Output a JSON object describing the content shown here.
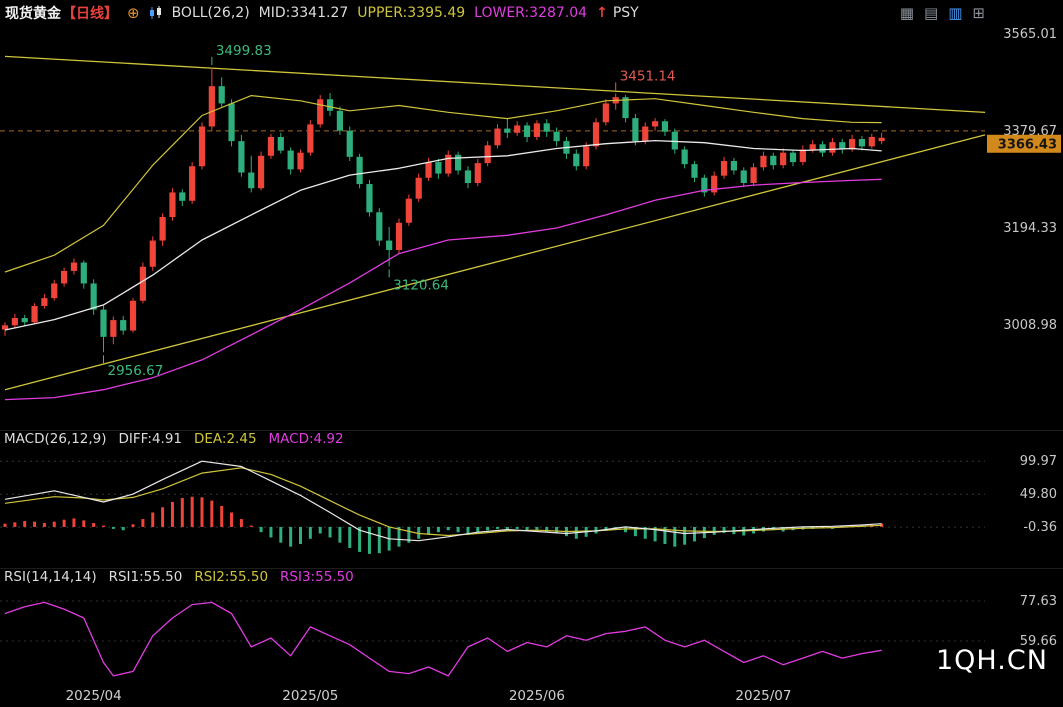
{
  "header": {
    "symbol": "现货黄金",
    "period": "【日线】",
    "plus": "⊕",
    "boll": {
      "label": "BOLL(26,2)",
      "mid": "MID:3341.27",
      "upper": "UPPER:3395.49",
      "lower": "LOWER:3287.04"
    },
    "arrow": "↑",
    "psy": "PSY",
    "icons": [
      "▦",
      "▤",
      "▥",
      "⊞"
    ]
  },
  "macd_header": {
    "name": "MACD(26,12,9)",
    "diff": "DIFF:4.91",
    "dea": "DEA:2.45",
    "macd": "MACD:4.92"
  },
  "rsi_header": {
    "name": "RSI(14,14,14)",
    "rsi1": "RSI1:55.50",
    "rsi2": "RSI2:55.50",
    "rsi3": "RSI3:55.50"
  },
  "watermark": "1QH.CN",
  "colors": {
    "up": "#ef4439",
    "down": "#2fae7d",
    "yellow": "#cfc53c",
    "magenta": "#e03ce0",
    "white": "#eaeaea",
    "dashed": "#a5691e",
    "price_box_bg": "#d2891c",
    "axis_text": "#c8c8c8"
  },
  "axis": {
    "x_labels": [
      {
        "label": "2025/04",
        "index": 9
      },
      {
        "label": "2025/05",
        "index": 31
      },
      {
        "label": "2025/06",
        "index": 54
      },
      {
        "label": "2025/07",
        "index": 77
      }
    ]
  },
  "chart_data": [
    {
      "type": "candlestick",
      "title": "现货黄金 日线 (Spot Gold Daily)",
      "ylim": [
        2808,
        3580
      ],
      "y_ticks": [
        "3565.01",
        "3379.67",
        "3194.33",
        "3008.98"
      ],
      "dashed_line": 3379.67,
      "last_price": 3366.43,
      "last_price_label": "3366.43",
      "candles": [
        [
          3000,
          3014,
          2988,
          3008
        ],
        [
          3008,
          3030,
          3002,
          3022
        ],
        [
          3022,
          3028,
          3006,
          3014
        ],
        [
          3014,
          3050,
          3010,
          3045
        ],
        [
          3045,
          3068,
          3040,
          3060
        ],
        [
          3060,
          3095,
          3055,
          3088
        ],
        [
          3088,
          3118,
          3082,
          3112
        ],
        [
          3112,
          3136,
          3105,
          3128
        ],
        [
          3128,
          3132,
          3078,
          3088
        ],
        [
          3088,
          3096,
          3028,
          3038
        ],
        [
          3038,
          3046,
          2956.67,
          2986
        ],
        [
          2986,
          3025,
          2972,
          3018
        ],
        [
          3018,
          3026,
          2990,
          2998
        ],
        [
          2998,
          3060,
          2994,
          3055
        ],
        [
          3055,
          3128,
          3050,
          3120
        ],
        [
          3120,
          3178,
          3112,
          3170
        ],
        [
          3170,
          3222,
          3160,
          3215
        ],
        [
          3215,
          3270,
          3208,
          3262
        ],
        [
          3262,
          3268,
          3236,
          3246
        ],
        [
          3246,
          3320,
          3240,
          3312
        ],
        [
          3312,
          3396,
          3306,
          3388
        ],
        [
          3388,
          3499.83,
          3380,
          3465
        ],
        [
          3465,
          3482,
          3424,
          3432
        ],
        [
          3432,
          3440,
          3350,
          3360
        ],
        [
          3360,
          3372,
          3292,
          3300
        ],
        [
          3300,
          3332,
          3262,
          3270
        ],
        [
          3270,
          3340,
          3266,
          3332
        ],
        [
          3332,
          3374,
          3326,
          3368
        ],
        [
          3368,
          3376,
          3336,
          3342
        ],
        [
          3342,
          3348,
          3296,
          3306
        ],
        [
          3306,
          3344,
          3300,
          3338
        ],
        [
          3338,
          3400,
          3332,
          3392
        ],
        [
          3392,
          3448,
          3386,
          3440
        ],
        [
          3440,
          3452,
          3408,
          3418
        ],
        [
          3418,
          3426,
          3372,
          3380
        ],
        [
          3380,
          3388,
          3322,
          3330
        ],
        [
          3330,
          3336,
          3270,
          3278
        ],
        [
          3278,
          3286,
          3216,
          3224
        ],
        [
          3224,
          3232,
          3160,
          3170
        ],
        [
          3170,
          3196,
          3120.64,
          3152
        ],
        [
          3152,
          3212,
          3146,
          3204
        ],
        [
          3204,
          3258,
          3198,
          3250
        ],
        [
          3250,
          3298,
          3244,
          3290
        ],
        [
          3290,
          3328,
          3284,
          3320
        ],
        [
          3320,
          3326,
          3288,
          3298
        ],
        [
          3298,
          3342,
          3292,
          3334
        ],
        [
          3334,
          3340,
          3296,
          3304
        ],
        [
          3304,
          3312,
          3270,
          3280
        ],
        [
          3280,
          3326,
          3274,
          3318
        ],
        [
          3318,
          3360,
          3312,
          3352
        ],
        [
          3352,
          3392,
          3346,
          3384
        ],
        [
          3384,
          3404,
          3366,
          3376
        ],
        [
          3376,
          3398,
          3370,
          3390
        ],
        [
          3390,
          3396,
          3358,
          3368
        ],
        [
          3368,
          3400,
          3362,
          3394
        ],
        [
          3394,
          3402,
          3368,
          3378
        ],
        [
          3378,
          3386,
          3350,
          3360
        ],
        [
          3360,
          3368,
          3326,
          3336
        ],
        [
          3336,
          3344,
          3304,
          3312
        ],
        [
          3312,
          3358,
          3306,
          3350
        ],
        [
          3350,
          3404,
          3344,
          3396
        ],
        [
          3396,
          3440,
          3390,
          3432
        ],
        [
          3432,
          3451.14,
          3420,
          3444
        ],
        [
          3444,
          3448,
          3396,
          3404
        ],
        [
          3404,
          3412,
          3352,
          3360
        ],
        [
          3360,
          3396,
          3354,
          3388
        ],
        [
          3388,
          3404,
          3380,
          3398
        ],
        [
          3398,
          3402,
          3370,
          3378
        ],
        [
          3378,
          3384,
          3336,
          3344
        ],
        [
          3344,
          3350,
          3308,
          3316
        ],
        [
          3316,
          3322,
          3282,
          3290
        ],
        [
          3290,
          3296,
          3254,
          3262
        ],
        [
          3262,
          3302,
          3256,
          3294
        ],
        [
          3294,
          3330,
          3288,
          3322
        ],
        [
          3322,
          3328,
          3296,
          3304
        ],
        [
          3304,
          3310,
          3272,
          3280
        ],
        [
          3280,
          3318,
          3274,
          3310
        ],
        [
          3310,
          3340,
          3304,
          3332
        ],
        [
          3332,
          3338,
          3306,
          3314
        ],
        [
          3314,
          3346,
          3308,
          3338
        ],
        [
          3338,
          3344,
          3312,
          3320
        ],
        [
          3320,
          3352,
          3314,
          3344
        ],
        [
          3344,
          3362,
          3338,
          3354
        ],
        [
          3354,
          3360,
          3330,
          3338
        ],
        [
          3338,
          3366,
          3332,
          3358
        ],
        [
          3358,
          3364,
          3336,
          3344
        ],
        [
          3344,
          3372,
          3340,
          3364
        ],
        [
          3364,
          3370,
          3342,
          3350
        ],
        [
          3350,
          3374,
          3346,
          3368
        ],
        [
          3360,
          3376,
          3354,
          3366.43
        ]
      ],
      "boll_mid": [
        [
          0,
          2999
        ],
        [
          5,
          3019
        ],
        [
          10,
          3047
        ],
        [
          15,
          3104
        ],
        [
          20,
          3171
        ],
        [
          25,
          3219
        ],
        [
          30,
          3266
        ],
        [
          35,
          3295
        ],
        [
          40,
          3308
        ],
        [
          45,
          3327
        ],
        [
          51,
          3332
        ],
        [
          56,
          3346
        ],
        [
          61,
          3355
        ],
        [
          66,
          3361
        ],
        [
          71,
          3357
        ],
        [
          76,
          3346
        ],
        [
          81,
          3342
        ],
        [
          86,
          3346
        ],
        [
          89,
          3341.27
        ]
      ],
      "boll_upper": [
        [
          0,
          3110
        ],
        [
          5,
          3142
        ],
        [
          10,
          3199
        ],
        [
          15,
          3314
        ],
        [
          20,
          3409
        ],
        [
          25,
          3447
        ],
        [
          30,
          3437
        ],
        [
          35,
          3418
        ],
        [
          40,
          3428
        ],
        [
          45,
          3415
        ],
        [
          51,
          3403
        ],
        [
          56,
          3418
        ],
        [
          61,
          3437
        ],
        [
          66,
          3441
        ],
        [
          71,
          3428
        ],
        [
          76,
          3415
        ],
        [
          81,
          3403
        ],
        [
          86,
          3396
        ],
        [
          89,
          3395.49
        ]
      ],
      "boll_lower": [
        [
          0,
          2866
        ],
        [
          5,
          2870
        ],
        [
          10,
          2885
        ],
        [
          15,
          2908
        ],
        [
          20,
          2942
        ],
        [
          25,
          2990
        ],
        [
          30,
          3038
        ],
        [
          35,
          3089
        ],
        [
          40,
          3145
        ],
        [
          45,
          3171
        ],
        [
          51,
          3180
        ],
        [
          56,
          3194
        ],
        [
          61,
          3219
        ],
        [
          66,
          3247
        ],
        [
          71,
          3266
        ],
        [
          76,
          3276
        ],
        [
          81,
          3281
        ],
        [
          86,
          3285
        ],
        [
          89,
          3287.04
        ]
      ],
      "trendlines": [
        {
          "x1": 0,
          "p1": 3522,
          "x2": 99.5,
          "p2": 3415
        },
        {
          "x1": 0,
          "p1": 2885,
          "x2": 99.5,
          "p2": 3372
        }
      ],
      "annotations": [
        {
          "text": "3499.83",
          "index": 21,
          "price": 3499.83,
          "pos": "above",
          "color": "#3db97e"
        },
        {
          "text": "3451.14",
          "index": 62,
          "price": 3451.14,
          "pos": "above",
          "color": "#e05a52"
        },
        {
          "text": "3120.64",
          "index": 39,
          "price": 3120.64,
          "pos": "below",
          "color": "#3db97e"
        },
        {
          "text": "2956.67",
          "index": 10,
          "price": 2956.67,
          "pos": "below",
          "color": "#3db97e"
        }
      ]
    },
    {
      "type": "bar",
      "name": "MACD",
      "ylim": [
        -64,
        146
      ],
      "y_ticks": [
        "99.97",
        "49.80",
        "-0.36"
      ],
      "hist": [
        5,
        7,
        9,
        8,
        6,
        8,
        11,
        13,
        10,
        6,
        2,
        -3,
        -5,
        4,
        12,
        22,
        30,
        38,
        44,
        46,
        45,
        40,
        32,
        22,
        12,
        2,
        -8,
        -16,
        -24,
        -30,
        -26,
        -18,
        -10,
        -16,
        -24,
        -32,
        -38,
        -41,
        -40,
        -36,
        -30,
        -24,
        -18,
        -12,
        -8,
        -5,
        -8,
        -12,
        -8,
        -5,
        -3,
        -5,
        -3,
        -6,
        -4,
        -7,
        -10,
        -14,
        -18,
        -15,
        -10,
        -6,
        -4,
        -8,
        -14,
        -18,
        -22,
        -26,
        -30,
        -27,
        -22,
        -17,
        -12,
        -9,
        -11,
        -13,
        -10,
        -7,
        -5,
        -7,
        -5,
        -4,
        -3,
        -2,
        -3,
        2,
        3,
        2,
        3,
        4.92
      ],
      "diff": [
        [
          0,
          42
        ],
        [
          5,
          55
        ],
        [
          8,
          45
        ],
        [
          10,
          38
        ],
        [
          13,
          50
        ],
        [
          16,
          72
        ],
        [
          20,
          100
        ],
        [
          24,
          92
        ],
        [
          27,
          70
        ],
        [
          30,
          48
        ],
        [
          33,
          22
        ],
        [
          36,
          -5
        ],
        [
          39,
          -18
        ],
        [
          42,
          -21
        ],
        [
          45,
          -15
        ],
        [
          48,
          -8
        ],
        [
          51,
          -4
        ],
        [
          54,
          -7
        ],
        [
          57,
          -10
        ],
        [
          60,
          -6
        ],
        [
          63,
          0
        ],
        [
          66,
          -4
        ],
        [
          69,
          -10
        ],
        [
          72,
          -8
        ],
        [
          75,
          -5
        ],
        [
          78,
          -2
        ],
        [
          81,
          0
        ],
        [
          84,
          1
        ],
        [
          87,
          3
        ],
        [
          89,
          4.91
        ]
      ],
      "dea": [
        [
          0,
          36
        ],
        [
          5,
          46
        ],
        [
          8,
          44
        ],
        [
          10,
          41
        ],
        [
          13,
          45
        ],
        [
          16,
          58
        ],
        [
          20,
          82
        ],
        [
          24,
          90
        ],
        [
          27,
          80
        ],
        [
          30,
          62
        ],
        [
          33,
          40
        ],
        [
          36,
          18
        ],
        [
          39,
          0
        ],
        [
          42,
          -10
        ],
        [
          45,
          -13
        ],
        [
          48,
          -10
        ],
        [
          51,
          -6
        ],
        [
          54,
          -5
        ],
        [
          57,
          -7
        ],
        [
          60,
          -6
        ],
        [
          63,
          -3
        ],
        [
          66,
          -3
        ],
        [
          69,
          -6
        ],
        [
          72,
          -7
        ],
        [
          75,
          -6
        ],
        [
          78,
          -4
        ],
        [
          81,
          -2
        ],
        [
          84,
          -1
        ],
        [
          87,
          1
        ],
        [
          89,
          2.45
        ]
      ]
    },
    {
      "type": "line",
      "name": "RSI",
      "ylim": [
        39,
        92
      ],
      "y_ticks": [
        "77.63",
        "59.66"
      ],
      "points": [
        [
          0,
          72
        ],
        [
          2,
          75
        ],
        [
          4,
          77
        ],
        [
          6,
          74
        ],
        [
          8,
          70
        ],
        [
          10,
          50
        ],
        [
          11,
          44
        ],
        [
          13,
          46
        ],
        [
          15,
          62
        ],
        [
          17,
          70
        ],
        [
          19,
          76
        ],
        [
          21,
          77
        ],
        [
          23,
          72
        ],
        [
          25,
          57
        ],
        [
          27,
          61
        ],
        [
          29,
          53
        ],
        [
          31,
          66
        ],
        [
          33,
          62
        ],
        [
          35,
          58
        ],
        [
          37,
          52
        ],
        [
          39,
          46
        ],
        [
          41,
          45
        ],
        [
          43,
          48
        ],
        [
          45,
          44
        ],
        [
          47,
          57
        ],
        [
          49,
          61
        ],
        [
          51,
          55
        ],
        [
          53,
          59
        ],
        [
          55,
          57
        ],
        [
          57,
          62
        ],
        [
          59,
          60
        ],
        [
          61,
          63
        ],
        [
          63,
          64
        ],
        [
          65,
          66
        ],
        [
          67,
          60
        ],
        [
          69,
          57
        ],
        [
          71,
          60
        ],
        [
          73,
          55
        ],
        [
          75,
          50
        ],
        [
          77,
          53
        ],
        [
          79,
          49
        ],
        [
          81,
          52
        ],
        [
          83,
          55
        ],
        [
          85,
          52
        ],
        [
          87,
          54
        ],
        [
          89,
          55.5
        ]
      ]
    }
  ]
}
